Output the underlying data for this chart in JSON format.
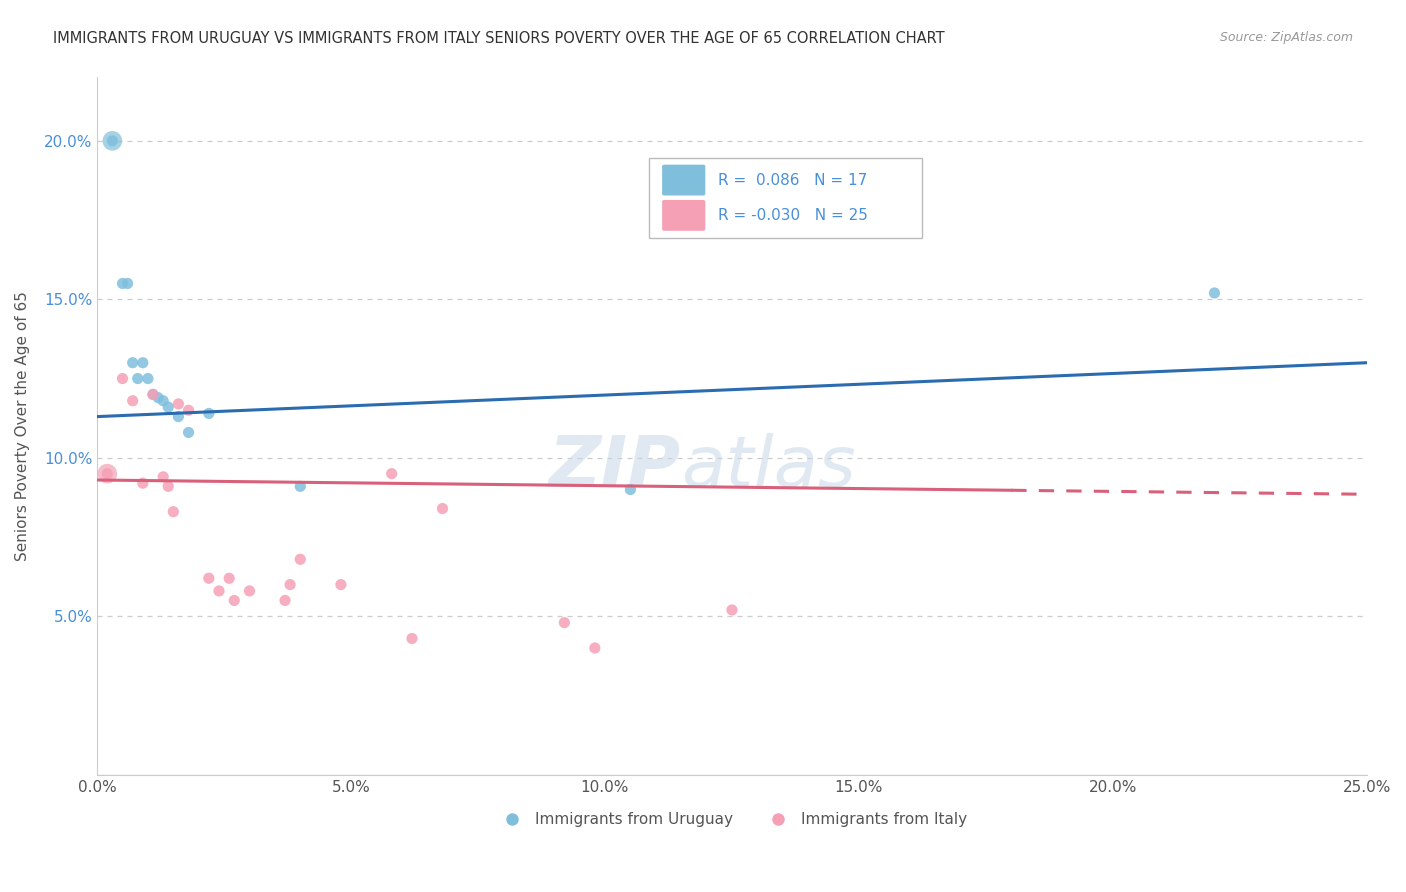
{
  "title": "IMMIGRANTS FROM URUGUAY VS IMMIGRANTS FROM ITALY SENIORS POVERTY OVER THE AGE OF 65 CORRELATION CHART",
  "source": "Source: ZipAtlas.com",
  "xlabel_uruguay": "Immigrants from Uruguay",
  "xlabel_italy": "Immigrants from Italy",
  "ylabel": "Seniors Poverty Over the Age of 65",
  "R_uruguay": 0.086,
  "N_uruguay": 17,
  "R_italy": -0.03,
  "N_italy": 25,
  "uruguay_color": "#7fbfdc",
  "italy_color": "#f5a0b5",
  "trend_uruguay_color": "#2b6cb0",
  "trend_italy_color": "#d9607a",
  "xlim": [
    0,
    0.25
  ],
  "ylim": [
    0,
    0.22
  ],
  "yticks": [
    0.05,
    0.1,
    0.15,
    0.2
  ],
  "xticks": [
    0.0,
    0.05,
    0.1,
    0.15,
    0.2,
    0.25
  ],
  "background_color": "#ffffff",
  "watermark_zip": "ZIP",
  "watermark_atlas": "atlas",
  "uruguay_x": [
    0.003,
    0.005,
    0.006,
    0.007,
    0.008,
    0.009,
    0.01,
    0.011,
    0.012,
    0.013,
    0.014,
    0.016,
    0.018,
    0.022,
    0.04,
    0.105,
    0.22
  ],
  "uruguay_y": [
    0.2,
    0.155,
    0.155,
    0.13,
    0.125,
    0.13,
    0.125,
    0.12,
    0.119,
    0.118,
    0.116,
    0.113,
    0.108,
    0.114,
    0.091,
    0.09,
    0.152
  ],
  "italy_x": [
    0.002,
    0.005,
    0.007,
    0.009,
    0.011,
    0.013,
    0.014,
    0.015,
    0.016,
    0.018,
    0.022,
    0.024,
    0.026,
    0.027,
    0.03,
    0.037,
    0.038,
    0.04,
    0.048,
    0.058,
    0.062,
    0.068,
    0.092,
    0.098,
    0.125
  ],
  "italy_y": [
    0.095,
    0.125,
    0.118,
    0.092,
    0.12,
    0.094,
    0.091,
    0.083,
    0.117,
    0.115,
    0.062,
    0.058,
    0.062,
    0.055,
    0.058,
    0.055,
    0.06,
    0.068,
    0.06,
    0.095,
    0.043,
    0.084,
    0.048,
    0.04,
    0.052
  ],
  "trend_italy_solid_end": 0.18,
  "legend_R_italy_text": "R = -0.030",
  "legend_R_uruguay_text": "R =  0.086"
}
